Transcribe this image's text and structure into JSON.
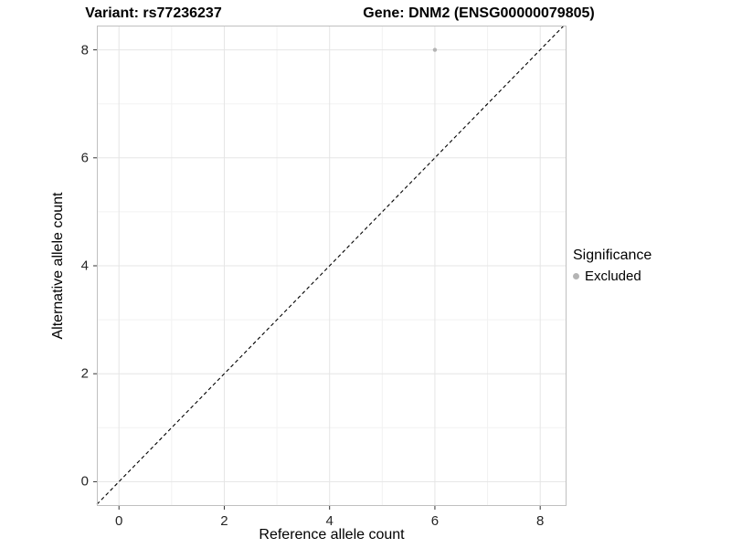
{
  "chart_data": {
    "type": "scatter",
    "titles": {
      "left": "Variant: rs77236237",
      "right": "Gene: DNM2 (ENSG00000079805)"
    },
    "xlabel": "Reference allele count",
    "ylabel": "Alternative allele count",
    "x_ticks": [
      0,
      2,
      4,
      6,
      8
    ],
    "y_ticks": [
      0,
      2,
      4,
      6,
      8
    ],
    "x_minor_ticks": [
      1,
      3,
      5,
      7
    ],
    "y_minor_ticks": [
      1,
      3,
      5,
      7
    ],
    "xlim": [
      -0.42,
      8.5
    ],
    "ylim": [
      -0.45,
      8.45
    ],
    "grid": true,
    "reference_line": {
      "type": "identity",
      "style": "dashed",
      "from": [
        -0.42,
        -0.42
      ],
      "to": [
        8.45,
        8.45
      ],
      "color": "#000000"
    },
    "series": [
      {
        "name": "Excluded",
        "color": "#b4b4b4",
        "points": [
          {
            "x": 6,
            "y": 8
          }
        ]
      }
    ],
    "legend": {
      "title": "Significance",
      "position": "right",
      "items": [
        {
          "label": "Excluded",
          "color": "#b4b4b4"
        }
      ]
    },
    "colors": {
      "grid_major": "#e5e5e5",
      "grid_minor": "#f2f2f2",
      "panel_border": "#c0c0c0",
      "tick": "#333333",
      "tick_label": "#262626",
      "background": "#ffffff"
    }
  }
}
